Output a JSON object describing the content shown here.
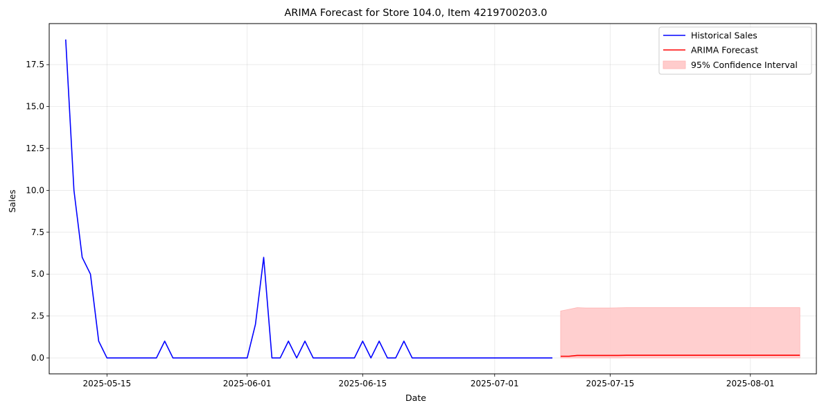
{
  "chart_data": {
    "type": "line",
    "title": "ARIMA Forecast for Store 104.0, Item 4219700203.0",
    "xlabel": "Date",
    "ylabel": "Sales",
    "x_ticks": [
      "2025-05-15",
      "2025-06-01",
      "2025-06-15",
      "2025-07-01",
      "2025-07-15",
      "2025-08-01"
    ],
    "y_ticks": [
      "0.0",
      "2.5",
      "5.0",
      "7.5",
      "10.0",
      "12.5",
      "15.0",
      "17.5"
    ],
    "xlim": [
      "2025-05-08",
      "2025-08-09"
    ],
    "ylim": [
      -0.95,
      19.95
    ],
    "grid": true,
    "legend_position": "top-right",
    "series": [
      {
        "name": "Historical Sales",
        "color": "#0000ff",
        "x": [
          "2025-05-10",
          "2025-05-11",
          "2025-05-12",
          "2025-05-13",
          "2025-05-14",
          "2025-05-15",
          "2025-05-16",
          "2025-05-17",
          "2025-05-18",
          "2025-05-19",
          "2025-05-20",
          "2025-05-21",
          "2025-05-22",
          "2025-05-23",
          "2025-05-24",
          "2025-05-25",
          "2025-05-26",
          "2025-05-27",
          "2025-05-28",
          "2025-05-29",
          "2025-05-30",
          "2025-05-31",
          "2025-06-01",
          "2025-06-02",
          "2025-06-03",
          "2025-06-04",
          "2025-06-05",
          "2025-06-06",
          "2025-06-07",
          "2025-06-08",
          "2025-06-09",
          "2025-06-10",
          "2025-06-11",
          "2025-06-12",
          "2025-06-13",
          "2025-06-14",
          "2025-06-15",
          "2025-06-16",
          "2025-06-17",
          "2025-06-18",
          "2025-06-19",
          "2025-06-20",
          "2025-06-21",
          "2025-06-22",
          "2025-06-23",
          "2025-06-24",
          "2025-06-25",
          "2025-06-26",
          "2025-06-27",
          "2025-06-28",
          "2025-06-29",
          "2025-06-30",
          "2025-07-01",
          "2025-07-02",
          "2025-07-03",
          "2025-07-04",
          "2025-07-05",
          "2025-07-06",
          "2025-07-07",
          "2025-07-08"
        ],
        "y": [
          19,
          10,
          6,
          5,
          1,
          0,
          0,
          0,
          0,
          0,
          0,
          0,
          1,
          0,
          0,
          0,
          0,
          0,
          0,
          0,
          0,
          0,
          0,
          2,
          6,
          0,
          0,
          1,
          0,
          1,
          0,
          0,
          0,
          0,
          0,
          0,
          1,
          0,
          1,
          0,
          0,
          1,
          0,
          0,
          0,
          0,
          0,
          0,
          0,
          0,
          0,
          0,
          0,
          0,
          0,
          0,
          0,
          0,
          0,
          0
        ]
      },
      {
        "name": "ARIMA Forecast",
        "color": "#ff0000",
        "x": [
          "2025-07-09",
          "2025-07-10",
          "2025-07-11",
          "2025-07-12",
          "2025-07-13",
          "2025-07-14",
          "2025-07-15",
          "2025-07-16",
          "2025-07-17",
          "2025-07-18",
          "2025-07-19",
          "2025-07-20",
          "2025-07-21",
          "2025-07-22",
          "2025-07-23",
          "2025-07-24",
          "2025-07-25",
          "2025-07-26",
          "2025-07-27",
          "2025-07-28",
          "2025-07-29",
          "2025-07-30",
          "2025-07-31",
          "2025-08-01",
          "2025-08-02",
          "2025-08-03",
          "2025-08-04",
          "2025-08-05",
          "2025-08-06",
          "2025-08-07"
        ],
        "y": [
          0.1,
          0.1,
          0.15,
          0.15,
          0.15,
          0.15,
          0.15,
          0.15,
          0.16,
          0.16,
          0.16,
          0.16,
          0.16,
          0.16,
          0.16,
          0.16,
          0.16,
          0.16,
          0.16,
          0.16,
          0.16,
          0.16,
          0.16,
          0.16,
          0.16,
          0.16,
          0.16,
          0.16,
          0.16,
          0.16
        ]
      }
    ],
    "confidence_interval": {
      "name": "95% Confidence Interval",
      "color": "#ffcccc",
      "x": [
        "2025-07-09",
        "2025-07-10",
        "2025-07-11",
        "2025-07-12",
        "2025-07-13",
        "2025-07-14",
        "2025-07-15",
        "2025-07-16",
        "2025-07-17",
        "2025-07-18",
        "2025-07-19",
        "2025-07-20",
        "2025-07-21",
        "2025-07-22",
        "2025-07-23",
        "2025-07-24",
        "2025-07-25",
        "2025-07-26",
        "2025-07-27",
        "2025-07-28",
        "2025-07-29",
        "2025-07-30",
        "2025-07-31",
        "2025-08-01",
        "2025-08-02",
        "2025-08-03",
        "2025-08-04",
        "2025-08-05",
        "2025-08-06",
        "2025-08-07"
      ],
      "lower": [
        0,
        0,
        0,
        0,
        0,
        0,
        0,
        0,
        0,
        0,
        0,
        0,
        0,
        0,
        0,
        0,
        0,
        0,
        0,
        0,
        0,
        0,
        0,
        0,
        0,
        0,
        0,
        0,
        0,
        0
      ],
      "upper": [
        2.8,
        2.9,
        3.0,
        2.98,
        2.98,
        2.98,
        2.98,
        2.99,
        3.0,
        3.0,
        3.0,
        3.0,
        3.0,
        3.0,
        3.0,
        3.0,
        3.0,
        3.0,
        3.0,
        3.0,
        3.0,
        3.0,
        3.0,
        3.0,
        3.0,
        3.0,
        3.0,
        3.0,
        3.0,
        3.0
      ]
    }
  }
}
